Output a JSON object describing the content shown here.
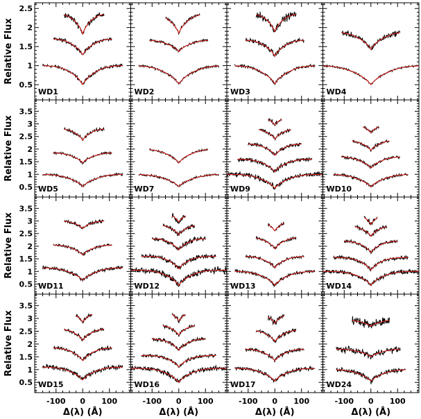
{
  "chart_data": {
    "type": "line",
    "layout": "4x4 grid of panels with shared axes",
    "xlabel": "Δ(λ) (Å)",
    "ylabel": "Relative Flux",
    "xlim": [
      -180,
      180
    ],
    "x_ticks": [
      -100,
      0,
      100
    ],
    "x_tick_labels": [
      "-100",
      "0",
      "100"
    ],
    "row_ylim": [
      [
        0.1,
        2.65
      ],
      [
        0.1,
        3.95
      ],
      [
        0.1,
        3.95
      ],
      [
        0.1,
        3.95
      ]
    ],
    "row_y_ticks": [
      [
        0.5,
        1,
        1.5,
        2,
        2.5
      ],
      [
        0.5,
        1,
        1.5,
        2,
        2.5,
        3,
        3.5
      ],
      [
        0.5,
        1,
        1.5,
        2,
        2.5,
        3,
        3.5
      ],
      [
        0.5,
        1,
        1.5,
        2,
        2.5,
        3,
        3.5
      ]
    ],
    "row_y_tick_labels": [
      [
        "0.5",
        "1",
        "1.5",
        "2",
        "2.5"
      ],
      [
        "0.5",
        "1",
        "1.5",
        "2",
        "2.5",
        "3",
        "3.5"
      ],
      [
        "0.5",
        "1",
        "1.5",
        "2",
        "2.5",
        "3",
        "3.5"
      ],
      [
        "0.5",
        "1",
        "1.5",
        "2",
        "2.5",
        "3",
        "3.5"
      ]
    ],
    "series_styles": {
      "observed": "#000000",
      "model": "#e8201c"
    },
    "panels": [
      {
        "label": "WD1",
        "row": 0,
        "col": 0,
        "lines": [
          {
            "offset": 1.0,
            "depth": 0.5,
            "width": 22,
            "xmin": -150,
            "xmax": 150,
            "noise": 0.035
          },
          {
            "offset": 1.7,
            "depth": 0.42,
            "width": 18,
            "xmin": -110,
            "xmax": 110,
            "noise": 0.04
          },
          {
            "offset": 2.35,
            "depth": 0.52,
            "width": 14,
            "xmin": -70,
            "xmax": 80,
            "noise": 0.06
          }
        ]
      },
      {
        "label": "WD2",
        "row": 0,
        "col": 1,
        "lines": [
          {
            "offset": 1.0,
            "depth": 0.48,
            "width": 26,
            "xmin": -150,
            "xmax": 150,
            "noise": 0.025
          },
          {
            "offset": 1.67,
            "depth": 0.3,
            "width": 20,
            "xmin": -110,
            "xmax": 110,
            "noise": 0.03
          },
          {
            "offset": 2.35,
            "depth": 0.5,
            "width": 16,
            "xmin": -50,
            "xmax": 80,
            "noise": 0.035
          }
        ]
      },
      {
        "label": "WD3",
        "row": 0,
        "col": 2,
        "lines": [
          {
            "offset": 1.0,
            "depth": 0.48,
            "width": 24,
            "xmin": -150,
            "xmax": 150,
            "noise": 0.035
          },
          {
            "offset": 1.67,
            "depth": 0.42,
            "width": 18,
            "xmin": -110,
            "xmax": 110,
            "noise": 0.05
          },
          {
            "offset": 2.35,
            "depth": 0.45,
            "width": 14,
            "xmin": -70,
            "xmax": 80,
            "noise": 0.08
          }
        ]
      },
      {
        "label": "WD4",
        "row": 0,
        "col": 3,
        "lines": [
          {
            "offset": 1.0,
            "depth": 0.5,
            "width": 30,
            "xmin": -180,
            "xmax": 180,
            "noise": 0.02
          },
          {
            "offset": 1.88,
            "depth": 0.45,
            "width": 22,
            "xmin": -110,
            "xmax": 110,
            "noise": 0.06
          }
        ]
      },
      {
        "label": "WD5",
        "row": 1,
        "col": 0,
        "lines": [
          {
            "offset": 1.0,
            "depth": 0.48,
            "width": 24,
            "xmin": -150,
            "xmax": 150,
            "noise": 0.04
          },
          {
            "offset": 1.85,
            "depth": 0.4,
            "width": 18,
            "xmin": -110,
            "xmax": 110,
            "noise": 0.04
          },
          {
            "offset": 2.8,
            "depth": 0.45,
            "width": 14,
            "xmin": -70,
            "xmax": 80,
            "noise": 0.06
          }
        ]
      },
      {
        "label": "WD7",
        "row": 1,
        "col": 1,
        "lines": [
          {
            "offset": 1.0,
            "depth": 0.48,
            "width": 26,
            "xmin": -150,
            "xmax": 150,
            "noise": 0.035
          },
          {
            "offset": 2.0,
            "depth": 0.55,
            "width": 22,
            "xmin": -110,
            "xmax": 110,
            "noise": 0.035
          }
        ]
      },
      {
        "label": "WD9",
        "row": 1,
        "col": 2,
        "lines": [
          {
            "offset": 1.0,
            "depth": 0.55,
            "width": 24,
            "xmin": -180,
            "xmax": 180,
            "noise": 0.08
          },
          {
            "offset": 1.6,
            "depth": 0.5,
            "width": 20,
            "xmin": -140,
            "xmax": 140,
            "noise": 0.07
          },
          {
            "offset": 2.2,
            "depth": 0.45,
            "width": 16,
            "xmin": -100,
            "xmax": 100,
            "noise": 0.06
          },
          {
            "offset": 2.8,
            "depth": 0.4,
            "width": 14,
            "xmin": -60,
            "xmax": 60,
            "noise": 0.06
          },
          {
            "offset": 3.3,
            "depth": 0.35,
            "width": 12,
            "xmin": -25,
            "xmax": 25,
            "noise": 0.07
          }
        ]
      },
      {
        "label": "WD10",
        "row": 1,
        "col": 3,
        "lines": [
          {
            "offset": 1.0,
            "depth": 0.5,
            "width": 24,
            "xmin": -140,
            "xmax": 140,
            "noise": 0.05
          },
          {
            "offset": 1.7,
            "depth": 0.45,
            "width": 20,
            "xmin": -110,
            "xmax": 110,
            "noise": 0.05
          },
          {
            "offset": 2.35,
            "depth": 0.4,
            "width": 16,
            "xmin": -70,
            "xmax": 70,
            "noise": 0.05
          },
          {
            "offset": 3.0,
            "depth": 0.35,
            "width": 14,
            "xmin": -30,
            "xmax": 30,
            "noise": 0.05
          }
        ]
      },
      {
        "label": "WD11",
        "row": 2,
        "col": 0,
        "lines": [
          {
            "offset": 1.15,
            "depth": 0.5,
            "width": 24,
            "xmin": -150,
            "xmax": 150,
            "noise": 0.06
          },
          {
            "offset": 2.05,
            "depth": 0.4,
            "width": 18,
            "xmin": -110,
            "xmax": 110,
            "noise": 0.05
          },
          {
            "offset": 3.0,
            "depth": 0.3,
            "width": 14,
            "xmin": -70,
            "xmax": 80,
            "noise": 0.05
          }
        ]
      },
      {
        "label": "WD12",
        "row": 2,
        "col": 1,
        "lines": [
          {
            "offset": 1.05,
            "depth": 0.6,
            "width": 22,
            "xmin": -180,
            "xmax": 180,
            "noise": 0.1
          },
          {
            "offset": 1.6,
            "depth": 0.5,
            "width": 18,
            "xmin": -140,
            "xmax": 140,
            "noise": 0.08
          },
          {
            "offset": 2.3,
            "depth": 0.45,
            "width": 16,
            "xmin": -100,
            "xmax": 100,
            "noise": 0.08
          },
          {
            "offset": 2.85,
            "depth": 0.4,
            "width": 14,
            "xmin": -60,
            "xmax": 60,
            "noise": 0.08
          },
          {
            "offset": 3.35,
            "depth": 0.4,
            "width": 12,
            "xmin": -25,
            "xmax": 25,
            "noise": 0.09
          }
        ]
      },
      {
        "label": "WD13",
        "row": 2,
        "col": 2,
        "lines": [
          {
            "offset": 1.0,
            "depth": 0.55,
            "width": 22,
            "xmin": -150,
            "xmax": 150,
            "noise": 0.06
          },
          {
            "offset": 1.6,
            "depth": 0.45,
            "width": 18,
            "xmin": -110,
            "xmax": 110,
            "noise": 0.05
          },
          {
            "offset": 2.35,
            "depth": 0.45,
            "width": 16,
            "xmin": -70,
            "xmax": 80,
            "noise": 0.05
          },
          {
            "offset": 3.0,
            "depth": 0.4,
            "width": 12,
            "xmin": -25,
            "xmax": 35,
            "noise": 0.05
          }
        ]
      },
      {
        "label": "WD14",
        "row": 2,
        "col": 3,
        "lines": [
          {
            "offset": 1.0,
            "depth": 0.55,
            "width": 22,
            "xmin": -180,
            "xmax": 180,
            "noise": 0.07
          },
          {
            "offset": 1.55,
            "depth": 0.5,
            "width": 18,
            "xmin": -140,
            "xmax": 140,
            "noise": 0.06
          },
          {
            "offset": 2.2,
            "depth": 0.45,
            "width": 16,
            "xmin": -100,
            "xmax": 100,
            "noise": 0.06
          },
          {
            "offset": 2.8,
            "depth": 0.4,
            "width": 14,
            "xmin": -60,
            "xmax": 60,
            "noise": 0.07
          },
          {
            "offset": 3.3,
            "depth": 0.45,
            "width": 12,
            "xmin": -25,
            "xmax": 25,
            "noise": 0.09
          }
        ]
      },
      {
        "label": "WD15",
        "row": 3,
        "col": 0,
        "lines": [
          {
            "offset": 1.1,
            "depth": 0.5,
            "width": 22,
            "xmin": -150,
            "xmax": 150,
            "noise": 0.08
          },
          {
            "offset": 1.85,
            "depth": 0.5,
            "width": 18,
            "xmin": -110,
            "xmax": 110,
            "noise": 0.06
          },
          {
            "offset": 2.6,
            "depth": 0.45,
            "width": 16,
            "xmin": -70,
            "xmax": 80,
            "noise": 0.06
          },
          {
            "offset": 3.25,
            "depth": 0.4,
            "width": 12,
            "xmin": -25,
            "xmax": 35,
            "noise": 0.07
          }
        ]
      },
      {
        "label": "WD16",
        "row": 3,
        "col": 1,
        "lines": [
          {
            "offset": 1.05,
            "depth": 0.55,
            "width": 22,
            "xmin": -180,
            "xmax": 180,
            "noise": 0.08
          },
          {
            "offset": 1.55,
            "depth": 0.45,
            "width": 18,
            "xmin": -140,
            "xmax": 140,
            "noise": 0.06
          },
          {
            "offset": 2.2,
            "depth": 0.45,
            "width": 16,
            "xmin": -100,
            "xmax": 100,
            "noise": 0.06
          },
          {
            "offset": 2.75,
            "depth": 0.4,
            "width": 14,
            "xmin": -60,
            "xmax": 60,
            "noise": 0.06
          },
          {
            "offset": 3.3,
            "depth": 0.4,
            "width": 12,
            "xmin": -25,
            "xmax": 25,
            "noise": 0.08
          }
        ]
      },
      {
        "label": "WD17",
        "row": 3,
        "col": 2,
        "lines": [
          {
            "offset": 1.05,
            "depth": 0.5,
            "width": 22,
            "xmin": -150,
            "xmax": 150,
            "noise": 0.07
          },
          {
            "offset": 1.8,
            "depth": 0.45,
            "width": 18,
            "xmin": -110,
            "xmax": 110,
            "noise": 0.06
          },
          {
            "offset": 2.55,
            "depth": 0.45,
            "width": 16,
            "xmin": -70,
            "xmax": 80,
            "noise": 0.07
          },
          {
            "offset": 3.2,
            "depth": 0.4,
            "width": 12,
            "xmin": -25,
            "xmax": 35,
            "noise": 0.09
          }
        ]
      },
      {
        "label": "WD24",
        "row": 3,
        "col": 3,
        "lines": [
          {
            "offset": 1.0,
            "depth": 0.45,
            "width": 22,
            "xmin": -130,
            "xmax": 130,
            "noise": 0.08
          },
          {
            "offset": 1.8,
            "depth": 0.3,
            "width": 20,
            "xmin": -130,
            "xmax": 110,
            "noise": 0.1
          },
          {
            "offset": 2.95,
            "depth": 0.25,
            "width": 18,
            "xmin": -70,
            "xmax": 70,
            "noise": 0.14
          }
        ]
      }
    ]
  }
}
